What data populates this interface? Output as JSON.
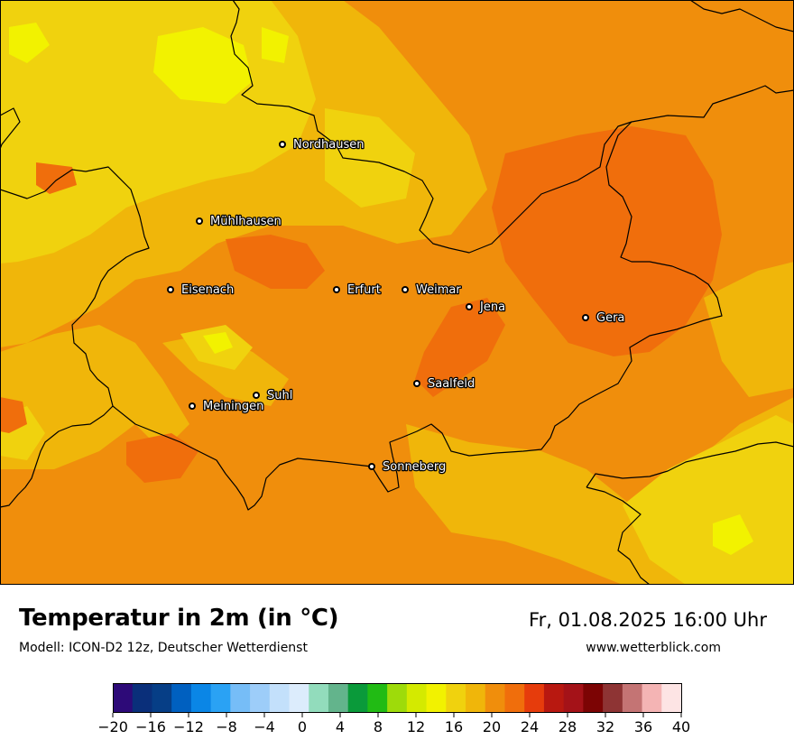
{
  "title": "Temperatur in 2m (in °C)",
  "model": "Modell: ICON-D2 12z, Deutscher Wetterdienst",
  "datetime": "Fr, 01.08.2025 16:00 Uhr",
  "website": "www.wetterblick.com",
  "cities": [
    {
      "name": "Nordhausen"
    },
    {
      "name": "Mühlhausen"
    },
    {
      "name": "Eisenach"
    },
    {
      "name": "Erfurt"
    },
    {
      "name": "Weimar"
    },
    {
      "name": "Jena"
    },
    {
      "name": "Gera"
    },
    {
      "name": "Saalfeld"
    },
    {
      "name": "Suhl"
    },
    {
      "name": "Meiningen"
    },
    {
      "name": "Sonneberg"
    }
  ],
  "legend": {
    "min": -20,
    "max": 40,
    "step": 2,
    "tick_labels": [
      "−20",
      "−16",
      "−12",
      "−8",
      "−4",
      "0",
      "4",
      "8",
      "12",
      "16",
      "20",
      "24",
      "28",
      "32",
      "36",
      "40"
    ],
    "colors": [
      "#2d0a78",
      "#0a2f7a",
      "#063e86",
      "#0060c0",
      "#0a86e6",
      "#2aa2f4",
      "#76bdf7",
      "#9dcdf9",
      "#c3e0fb",
      "#dcecfc",
      "#92dcbc",
      "#63b48c",
      "#0a9a3a",
      "#21bb14",
      "#9edb0a",
      "#d4ea00",
      "#f2f200",
      "#f0d20e",
      "#f0b60a",
      "#f08e0c",
      "#f06e0c",
      "#e63c0c",
      "#b81810",
      "#a41218",
      "#7c0404",
      "#8e3434",
      "#c47474",
      "#f4b4b4",
      "#fde4e4"
    ]
  },
  "map_colors": {
    "t18": "#f2f200",
    "t20": "#f0d20e",
    "t22": "#f0b60a",
    "t24": "#f08e0c",
    "t26": "#f06e0c"
  }
}
